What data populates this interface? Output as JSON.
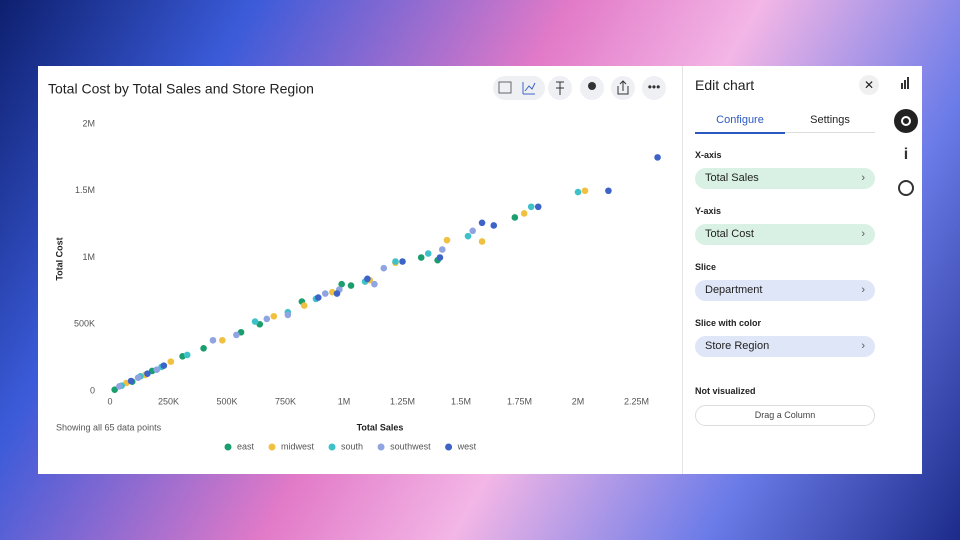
{
  "chart_data": {
    "type": "scatter",
    "title": "Total Cost by Total Sales and Store Region",
    "x_label": "Total Sales",
    "y_label": "Total Cost",
    "note": "Showing all 65 data points",
    "xlim": [
      0,
      2400000
    ],
    "ylim": [
      0,
      2000000
    ],
    "xticks": [
      0,
      {
        "value": 250000,
        "label": "250K"
      },
      {
        "value": 500000,
        "label": "500K"
      },
      {
        "value": 750000,
        "label": "750K"
      },
      {
        "value": 1000000,
        "label": "1M"
      },
      {
        "value": 1250000,
        "label": "1.25M"
      },
      {
        "value": 1500000,
        "label": "1.5M"
      },
      {
        "value": 1750000,
        "label": "1.75M"
      },
      {
        "value": 2000000,
        "label": "2M"
      },
      {
        "value": 2250000,
        "label": "2.25M"
      }
    ],
    "yticks": [
      0,
      {
        "value": 500000,
        "label": "500K"
      },
      {
        "value": 1000000,
        "label": "1M"
      },
      {
        "value": 1500000,
        "label": "1.5M"
      },
      {
        "value": 2000000,
        "label": "2M"
      }
    ],
    "grid": false,
    "legend": "bottom",
    "series": [
      {
        "name": "east",
        "color": "#1a9e6e",
        "x": [
          20000,
          95000,
          180000,
          310000,
          400000,
          560000,
          640000,
          820000,
          990000,
          1030000,
          1330000,
          1400000,
          1730000
        ],
        "values": [
          10000,
          70000,
          150000,
          260000,
          320000,
          440000,
          500000,
          670000,
          800000,
          790000,
          1000000,
          980000,
          1300000
        ]
      },
      {
        "name": "midwest",
        "color": "#f0c040",
        "x": [
          70000,
          150000,
          260000,
          480000,
          700000,
          830000,
          950000,
          1110000,
          1220000,
          1440000,
          1590000,
          1770000,
          2030000
        ],
        "values": [
          60000,
          120000,
          220000,
          380000,
          560000,
          640000,
          740000,
          830000,
          960000,
          1130000,
          1120000,
          1330000,
          1500000
        ]
      },
      {
        "name": "south",
        "color": "#3fc1c9",
        "x": [
          50000,
          130000,
          220000,
          330000,
          620000,
          760000,
          880000,
          1090000,
          1220000,
          1360000,
          1530000,
          1800000,
          2000000
        ],
        "values": [
          40000,
          110000,
          180000,
          270000,
          520000,
          590000,
          690000,
          820000,
          970000,
          1030000,
          1160000,
          1380000,
          1490000
        ]
      },
      {
        "name": "southwest",
        "color": "#8fa4e0",
        "x": [
          40000,
          120000,
          200000,
          440000,
          540000,
          670000,
          760000,
          920000,
          980000,
          1130000,
          1170000,
          1420000,
          1550000
        ],
        "values": [
          35000,
          100000,
          160000,
          380000,
          420000,
          540000,
          570000,
          730000,
          760000,
          800000,
          920000,
          1060000,
          1200000
        ]
      },
      {
        "name": "west",
        "color": "#3d63c8",
        "x": [
          90000,
          160000,
          230000,
          890000,
          970000,
          1100000,
          1250000,
          1410000,
          1590000,
          1640000,
          1830000,
          2130000,
          2340000
        ],
        "values": [
          75000,
          130000,
          190000,
          700000,
          730000,
          840000,
          970000,
          1000000,
          1260000,
          1240000,
          1380000,
          1500000,
          1750000
        ]
      }
    ]
  },
  "edit_panel": {
    "title": "Edit chart",
    "tabs": [
      "Configure",
      "Settings"
    ],
    "sections": [
      {
        "label": "X-axis",
        "value": "Total Sales"
      },
      {
        "label": "Y-axis",
        "value": "Total Cost"
      },
      {
        "label": "Slice",
        "value": "Department"
      },
      {
        "label": "Slice with color",
        "value": "Store Region"
      }
    ],
    "not_visualized": {
      "label": "Not visualized",
      "placeholder": "Drag a Column"
    }
  }
}
